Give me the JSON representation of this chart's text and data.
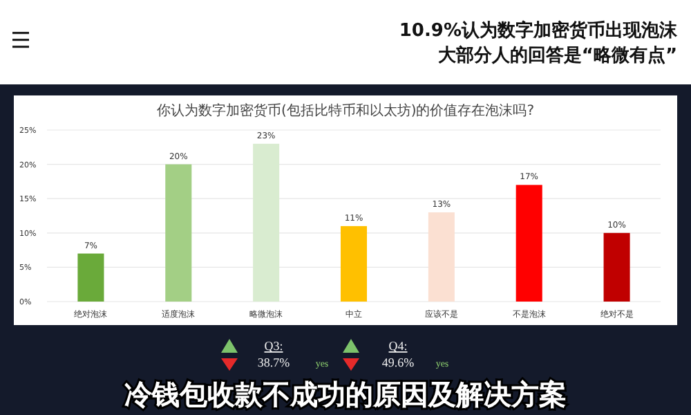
{
  "chart_data": {
    "type": "bar",
    "title": "你认为数字加密货币(包括比特币和以太坊)的价值存在泡沫吗?",
    "annotations": [
      "10.9%认为数字加密货币出现泡沫",
      "大部分人的回答是“略微有点”",
      "Q3:",
      "38.7%",
      "yes",
      "Q4:",
      "49.6%",
      "yes",
      "冷钱包收款不成功的原因及解决方案"
    ],
    "categories": [
      "绝对泡沫",
      "适度泡沫",
      "略微泡沫",
      "中立",
      "应该不是",
      "不是泡沫",
      "绝对不是"
    ],
    "values": [
      7,
      20,
      23,
      11,
      13,
      17,
      10
    ],
    "colors": [
      "#6aaa3a",
      "#a3cf85",
      "#d9ecd0",
      "#ffc000",
      "#fbe0d2",
      "#ff0000",
      "#c00000"
    ],
    "value_labels": [
      "7%",
      "20%",
      "23%",
      "11%",
      "13%",
      "17%",
      "10%"
    ],
    "ylim": [
      0,
      25
    ],
    "yticks": [
      {
        "value": 0,
        "label": "0%"
      },
      {
        "value": 5,
        "label": "5%"
      },
      {
        "value": 10,
        "label": "10%"
      },
      {
        "value": 15,
        "label": "15%"
      },
      {
        "value": 20,
        "label": "20%"
      },
      {
        "value": 25,
        "label": "25%"
      }
    ],
    "grid": "y"
  }
}
